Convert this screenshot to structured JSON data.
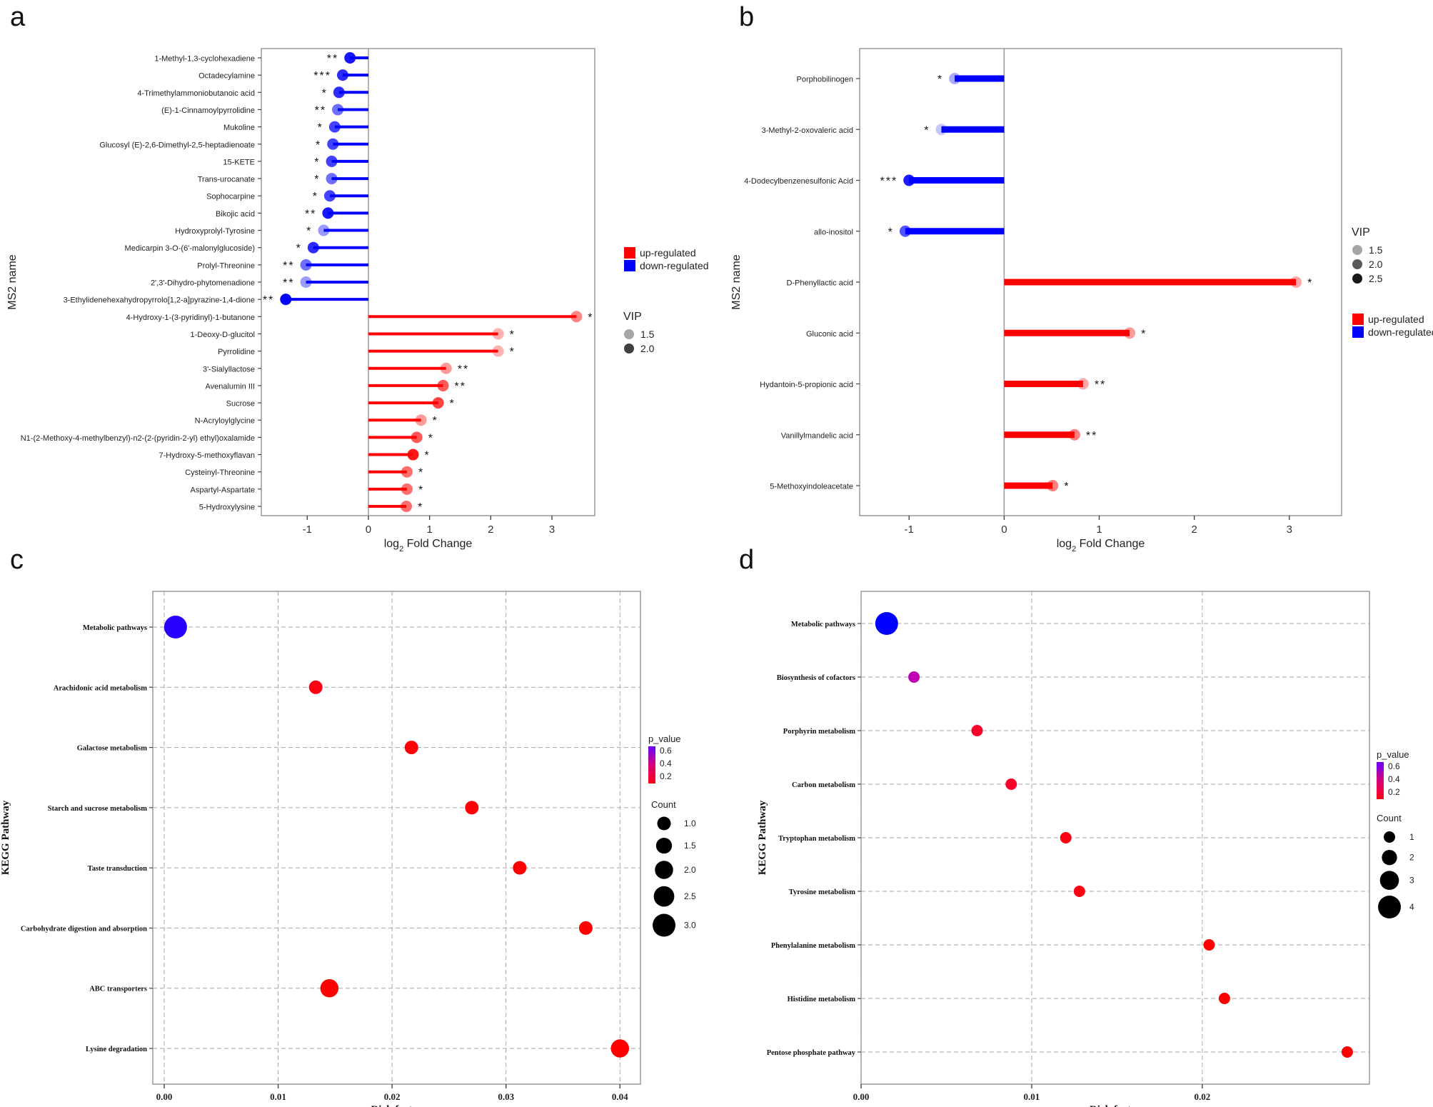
{
  "panel_letters": [
    "a",
    "b",
    "c",
    "d"
  ],
  "colors": {
    "up": "#ff0000",
    "down": "#0000ff",
    "frame": "#9a9a9a",
    "grid": "#a6a6a6",
    "text": "#222222"
  },
  "chart_data": [
    {
      "panel": "a",
      "type": "lollipop",
      "title": "",
      "xlabel_main": "log",
      "xlabel_sub": "2",
      "xlabel_rest": " Fold Change",
      "ylabel": "MS2 name",
      "xlim": [
        -1.75,
        3.7
      ],
      "xticks": [
        -1,
        0,
        1,
        2,
        3
      ],
      "xtick_labels": [
        "-1",
        "0",
        "1",
        "2",
        "3"
      ],
      "legend_dir_labels": [
        "up-regulated",
        "down-regulated"
      ],
      "vip_legend_title": "VIP",
      "vip_legend_values": [
        "1.5",
        "2.0"
      ],
      "vip_opacity_levels": [
        0.35,
        0.75
      ],
      "items": [
        {
          "name": "1-Methyl-1,3-cyclohexadiene",
          "fc": -0.3,
          "vip": 2.0,
          "sig": "**"
        },
        {
          "name": "Octadecylamine",
          "fc": -0.42,
          "vip": 1.9,
          "sig": "***"
        },
        {
          "name": "4-Trimethylammoniobutanoic acid",
          "fc": -0.48,
          "vip": 1.9,
          "sig": "*"
        },
        {
          "name": "(E)-1-Cinnamoylpyrrolidine",
          "fc": -0.5,
          "vip": 1.6,
          "sig": "**"
        },
        {
          "name": "Mukoline",
          "fc": -0.55,
          "vip": 1.8,
          "sig": "*"
        },
        {
          "name": "Glucosyl (E)-2,6-Dimethyl-2,5-heptadienoate",
          "fc": -0.58,
          "vip": 1.8,
          "sig": "*"
        },
        {
          "name": "15-KETE",
          "fc": -0.6,
          "vip": 1.8,
          "sig": "*"
        },
        {
          "name": "Trans-urocanate",
          "fc": -0.6,
          "vip": 1.6,
          "sig": "*"
        },
        {
          "name": "Sophocarpine",
          "fc": -0.63,
          "vip": 1.8,
          "sig": "*"
        },
        {
          "name": "Bikojic acid",
          "fc": -0.66,
          "vip": 2.0,
          "sig": "**"
        },
        {
          "name": "Hydroxyprolyl-Tyrosine",
          "fc": -0.73,
          "vip": 1.4,
          "sig": "*"
        },
        {
          "name": "Medicarpin 3-O-(6'-malonylglucoside)",
          "fc": -0.9,
          "vip": 1.9,
          "sig": "*"
        },
        {
          "name": "Prolyl-Threonine",
          "fc": -1.02,
          "vip": 1.6,
          "sig": "**"
        },
        {
          "name": "2',3'-Dihydro-phytomenadione",
          "fc": -1.02,
          "vip": 1.4,
          "sig": "**"
        },
        {
          "name": "3-Ethylidenehexahydropyrrolo[1,2-a]pyrazine-1,4-dione",
          "fc": -1.35,
          "vip": 2.1,
          "sig": "**"
        },
        {
          "name": "4-Hydroxy-1-(3-pyridinyl)-1-butanone",
          "fc": 3.4,
          "vip": 1.5,
          "sig": "*"
        },
        {
          "name": "1-Deoxy-D-glucitol",
          "fc": 2.12,
          "vip": 1.3,
          "sig": "*"
        },
        {
          "name": "Pyrrolidine",
          "fc": 2.12,
          "vip": 1.3,
          "sig": "*"
        },
        {
          "name": "3'-Sialyllactose",
          "fc": 1.27,
          "vip": 1.4,
          "sig": "**"
        },
        {
          "name": "Avenalumin III",
          "fc": 1.22,
          "vip": 1.7,
          "sig": "**"
        },
        {
          "name": "Sucrose",
          "fc": 1.14,
          "vip": 1.8,
          "sig": "*"
        },
        {
          "name": "N-Acryloylglycine",
          "fc": 0.86,
          "vip": 1.4,
          "sig": "*"
        },
        {
          "name": "N1-(2-Methoxy-4-methylbenzyl)-n2-(2-(pyridin-2-yl) ethyl)oxalamide",
          "fc": 0.79,
          "vip": 1.7,
          "sig": "*"
        },
        {
          "name": "7-Hydroxy-5-methoxyflavan",
          "fc": 0.73,
          "vip": 2.0,
          "sig": "*"
        },
        {
          "name": "Cysteinyl-Threonine",
          "fc": 0.63,
          "vip": 1.6,
          "sig": "*"
        },
        {
          "name": "Aspartyl-Aspartate",
          "fc": 0.63,
          "vip": 1.6,
          "sig": "*"
        },
        {
          "name": "5-Hydroxylysine",
          "fc": 0.62,
          "vip": 1.6,
          "sig": "*"
        }
      ]
    },
    {
      "panel": "b",
      "type": "lollipop",
      "title": "",
      "xlabel_main": "log",
      "xlabel_sub": "2",
      "xlabel_rest": " Fold Change",
      "ylabel": "MS2 name",
      "xlim": [
        -1.52,
        3.55
      ],
      "xticks": [
        -1,
        0,
        1,
        2,
        3
      ],
      "xtick_labels": [
        "-1",
        "0",
        "1",
        "2",
        "3"
      ],
      "legend_dir_labels": [
        "up-regulated",
        "down-regulated"
      ],
      "vip_legend_title": "VIP",
      "vip_legend_values": [
        "1.5",
        "2.0",
        "2.5"
      ],
      "vip_opacity_levels": [
        0.35,
        0.65,
        0.9
      ],
      "items": [
        {
          "name": "Porphobilinogen",
          "fc": -0.52,
          "vip": 1.4,
          "sig": "*"
        },
        {
          "name": "3-Methyl-2-oxovaleric acid",
          "fc": -0.66,
          "vip": 1.2,
          "sig": "*"
        },
        {
          "name": "4-Dodecylbenzenesulfonic Acid",
          "fc": -1.0,
          "vip": 2.4,
          "sig": "***"
        },
        {
          "name": "allo-inositol",
          "fc": -1.04,
          "vip": 2.0,
          "sig": "*"
        },
        {
          "name": "D-Phenyllactic acid",
          "fc": 3.07,
          "vip": 1.4,
          "sig": "*"
        },
        {
          "name": "Gluconic acid",
          "fc": 1.32,
          "vip": 1.5,
          "sig": "*"
        },
        {
          "name": "Hydantoin-5-propionic acid",
          "fc": 0.83,
          "vip": 1.4,
          "sig": "**"
        },
        {
          "name": "Vanillylmandelic acid",
          "fc": 0.74,
          "vip": 1.7,
          "sig": "**"
        },
        {
          "name": "5-Methoxyindoleacetate",
          "fc": 0.51,
          "vip": 1.7,
          "sig": "*"
        }
      ]
    },
    {
      "panel": "c",
      "type": "scatter",
      "title": "",
      "xlabel": "Rich factor",
      "ylabel": "KEGG Pathway",
      "xlim": [
        -0.001,
        0.0418
      ],
      "xticks": [
        0.0,
        0.01,
        0.02,
        0.03,
        0.04
      ],
      "xtick_labels": [
        "0.00",
        "0.01",
        "0.02",
        "0.03",
        "0.04"
      ],
      "pvalue_legend_title": "p_value",
      "pvalue_legend_ticks": [
        "0.6",
        "0.4",
        "0.2"
      ],
      "count_legend_title": "Count",
      "count_legend_values": [
        "1.0",
        "1.5",
        "2.0",
        "2.5",
        "3.0"
      ],
      "count_legend_numbers": [
        1.0,
        1.5,
        2.0,
        2.5,
        3.0
      ],
      "count_range": [
        1,
        3
      ],
      "points": [
        {
          "pathway": "Metabolic pathways",
          "rich": 0.001,
          "count": 3,
          "p": 0.6
        },
        {
          "pathway": "Arachidonic acid metabolism",
          "rich": 0.0133,
          "count": 1,
          "p": 0.08
        },
        {
          "pathway": "Galactose metabolism",
          "rich": 0.0217,
          "count": 1,
          "p": 0.06
        },
        {
          "pathway": "Starch and sucrose metabolism",
          "rich": 0.027,
          "count": 1,
          "p": 0.06
        },
        {
          "pathway": "Taste transduction",
          "rich": 0.0312,
          "count": 1,
          "p": 0.05
        },
        {
          "pathway": "Carbohydrate digestion and absorption",
          "rich": 0.037,
          "count": 1,
          "p": 0.04
        },
        {
          "pathway": "ABC transporters",
          "rich": 0.0145,
          "count": 2,
          "p": 0.05
        },
        {
          "pathway": "Lysine degradation",
          "rich": 0.04,
          "count": 2,
          "p": 0.02
        }
      ]
    },
    {
      "panel": "d",
      "type": "scatter",
      "title": "",
      "xlabel": "Rich factor",
      "ylabel": "KEGG Pathway",
      "xlim": [
        0.0,
        0.0298
      ],
      "xticks": [
        0.0,
        0.01,
        0.02
      ],
      "xtick_labels": [
        "0.00",
        "0.01",
        "0.02"
      ],
      "pvalue_legend_title": "p_value",
      "pvalue_legend_ticks": [
        "0.6",
        "0.4",
        "0.2"
      ],
      "count_legend_title": "Count",
      "count_legend_values": [
        "1",
        "2",
        "3",
        "4"
      ],
      "count_legend_numbers": [
        1,
        2,
        3,
        4
      ],
      "count_range": [
        1,
        4
      ],
      "points": [
        {
          "pathway": "Metabolic pathways",
          "rich": 0.0015,
          "count": 4,
          "p": 0.7
        },
        {
          "pathway": "Biosynthesis of cofactors",
          "rich": 0.0031,
          "count": 1,
          "p": 0.35
        },
        {
          "pathway": "Porphyrin metabolism",
          "rich": 0.0068,
          "count": 1,
          "p": 0.12
        },
        {
          "pathway": "Carbon metabolism",
          "rich": 0.0088,
          "count": 1,
          "p": 0.12
        },
        {
          "pathway": "Tryptophan metabolism",
          "rich": 0.012,
          "count": 1,
          "p": 0.08
        },
        {
          "pathway": "Tyrosine metabolism",
          "rich": 0.0128,
          "count": 1,
          "p": 0.08
        },
        {
          "pathway": "Phenylalanine metabolism",
          "rich": 0.0204,
          "count": 1,
          "p": 0.05
        },
        {
          "pathway": "Histidine metabolism",
          "rich": 0.0213,
          "count": 1,
          "p": 0.05
        },
        {
          "pathway": "Pentose phosphate pathway",
          "rich": 0.0285,
          "count": 1,
          "p": 0.04
        }
      ]
    }
  ]
}
